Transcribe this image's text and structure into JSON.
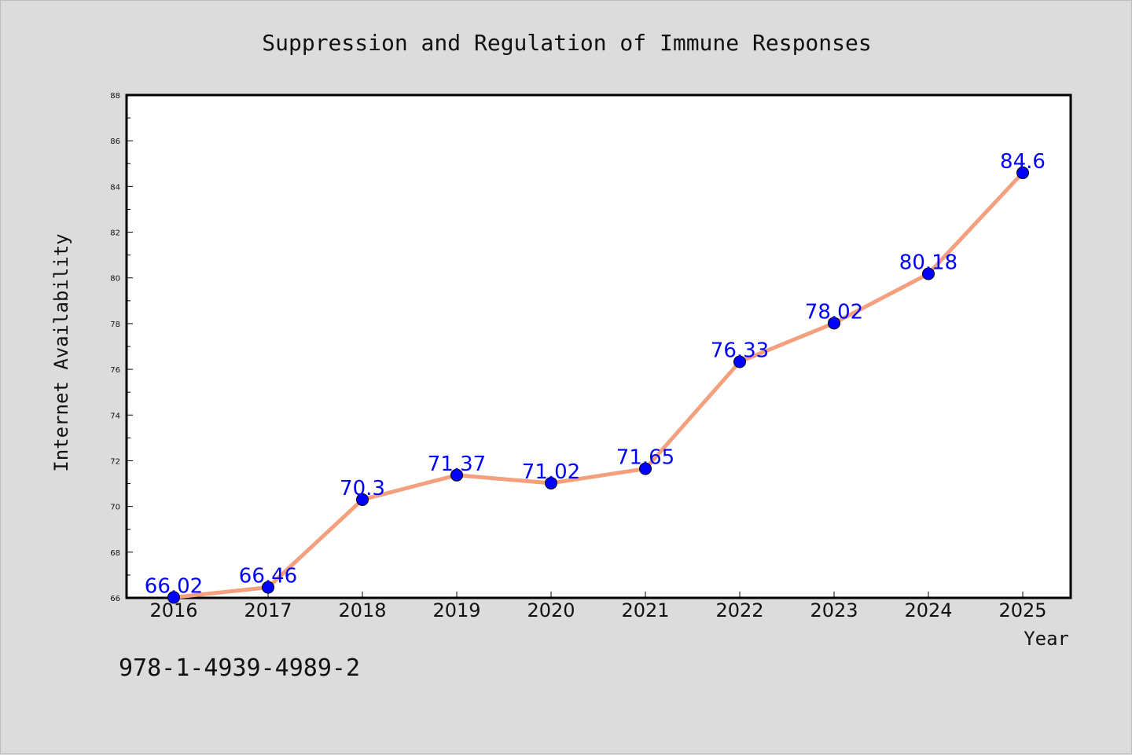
{
  "chart_data": {
    "type": "line",
    "title": "Suppression and Regulation of Immune Responses",
    "xlabel": "Year",
    "ylabel": "Internet Availability",
    "categories": [
      "2016",
      "2017",
      "2018",
      "2019",
      "2020",
      "2021",
      "2022",
      "2023",
      "2024",
      "2025"
    ],
    "series": [
      {
        "values": [
          66.02,
          66.46,
          70.3,
          71.37,
          71.02,
          71.65,
          76.33,
          78.02,
          80.18,
          84.6
        ]
      }
    ],
    "data_labels": [
      "66.02",
      "66.46",
      "70.3",
      "71.37",
      "71.02",
      "71.65",
      "76.33",
      "78.02",
      "80.18",
      "84.6"
    ],
    "ylim": [
      66,
      88
    ],
    "yticks": [
      "66",
      "68",
      "70",
      "72",
      "74",
      "76",
      "78",
      "80",
      "82",
      "84",
      "86",
      "88"
    ],
    "grid": false,
    "legend": "none",
    "colors": {
      "line": "#f4a07e",
      "marker": "#0000ff",
      "labels": "#0000ff",
      "background": "#dcdcdc",
      "plot_area": "#ffffff"
    }
  },
  "footer": {
    "code": "978-1-4939-4989-2"
  }
}
